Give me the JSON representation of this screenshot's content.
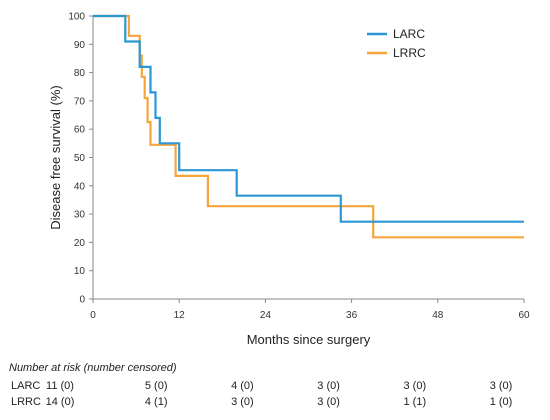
{
  "chart_data": {
    "type": "line",
    "step": true,
    "xlabel": "Months since surgery",
    "ylabel": "Disease free survival  (%)",
    "xlim": [
      0,
      60
    ],
    "ylim": [
      0,
      100
    ],
    "xticks": [
      0,
      12,
      24,
      36,
      48,
      60
    ],
    "yticks": [
      0,
      10,
      20,
      30,
      40,
      50,
      60,
      70,
      80,
      90,
      100
    ],
    "grid": false,
    "legend_position": "top-right",
    "series": [
      {
        "name": "LARC",
        "color": "#2b97d4",
        "x": [
          0,
          4.5,
          4.5,
          6.5,
          6.5,
          8,
          8,
          8.7,
          8.7,
          9.3,
          9.3,
          12,
          12,
          20,
          20,
          34.5,
          34.5,
          60
        ],
        "y": [
          100,
          100,
          91,
          91,
          82,
          82,
          73,
          73,
          64,
          64,
          55,
          55,
          45.5,
          45.5,
          36.5,
          36.5,
          27.3,
          27.3
        ]
      },
      {
        "name": "LRRC",
        "color": "#f5a53b",
        "x": [
          0,
          5,
          5,
          6.5,
          6.5,
          6.8,
          6.8,
          7.2,
          7.2,
          7.6,
          7.6,
          8,
          8,
          11.5,
          11.5,
          16,
          16,
          39,
          39,
          60
        ],
        "y": [
          100,
          100,
          93,
          93,
          86,
          86,
          78.5,
          78.5,
          71,
          71,
          62.5,
          62.5,
          54.5,
          54.5,
          43.5,
          43.5,
          32.8,
          32.8,
          21.8,
          21.8
        ]
      }
    ]
  },
  "risk_table": {
    "title": "Number at risk (number censored)",
    "times": [
      0,
      12,
      24,
      36,
      48,
      60
    ],
    "rows": [
      {
        "label": "LARC",
        "values": [
          "11 (0)",
          "5 (0)",
          "4 (0)",
          "3 (0)",
          "3 (0)",
          "3 (0)"
        ]
      },
      {
        "label": "LRRC",
        "values": [
          "14 (0)",
          "4 (1)",
          "3 (0)",
          "3 (0)",
          "1 (1)",
          "1 (0)"
        ]
      }
    ]
  }
}
